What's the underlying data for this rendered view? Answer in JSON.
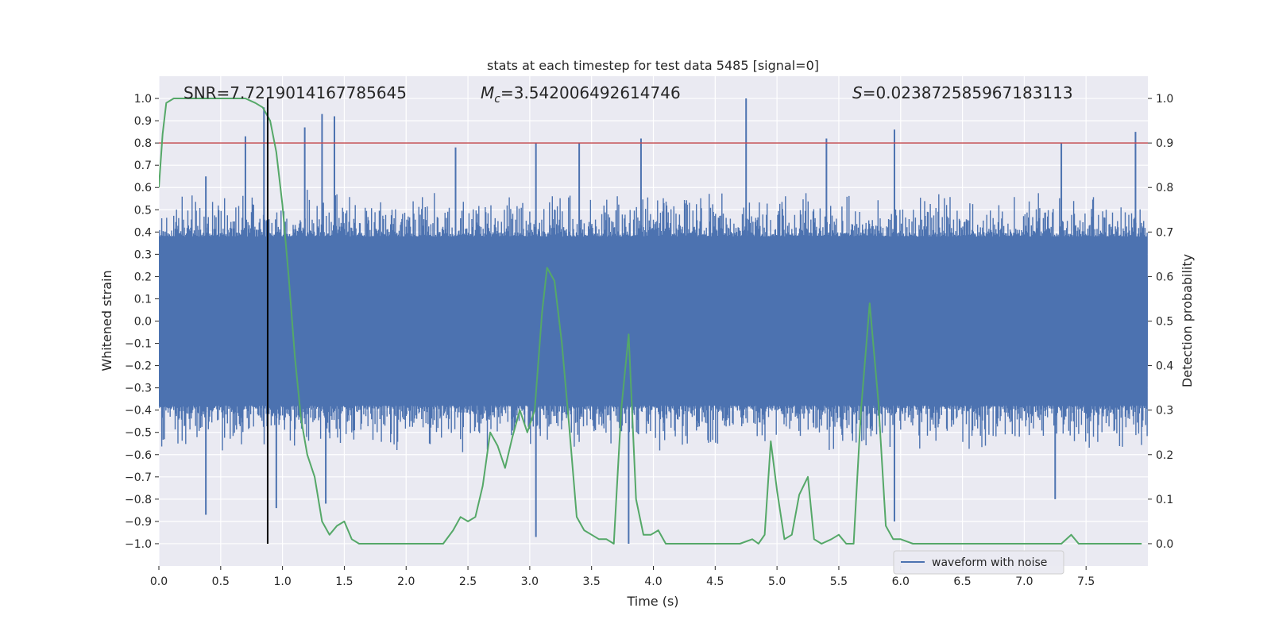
{
  "chart_data": {
    "type": "line",
    "title": "stats at each timestep for test data 5485 [signal=0]",
    "xlabel": "Time (s)",
    "ylabel_left": "Whitened strain",
    "ylabel_right": "Detection probability",
    "xlim": [
      0.0,
      8.0
    ],
    "ylim_left": [
      -1.1,
      1.1
    ],
    "ylim_right": [
      -0.05,
      1.05
    ],
    "grid": true,
    "legend_position": "lower-right",
    "stats": {
      "snr": {
        "label": "SNR=7.7219014167785645"
      },
      "mc": {
        "symbol": "M",
        "subscript": "c",
        "value": "=3.542006492614746"
      },
      "s": {
        "symbol": "S",
        "value": "=0.023872585967183113"
      }
    },
    "x_ticks": [
      "0.0",
      "0.5",
      "1.0",
      "1.5",
      "2.0",
      "2.5",
      "3.0",
      "3.5",
      "4.0",
      "4.5",
      "5.0",
      "5.5",
      "6.0",
      "6.5",
      "7.0",
      "7.5"
    ],
    "y_ticks_left": [
      "1.0",
      "0.9",
      "0.8",
      "0.7",
      "0.6",
      "0.5",
      "0.4",
      "0.3",
      "0.2",
      "0.1",
      "0.0",
      "−0.1",
      "−0.2",
      "−0.3",
      "−0.4",
      "−0.5",
      "−0.6",
      "−0.7",
      "−0.8",
      "−0.9",
      "−1.0"
    ],
    "y_ticks_right": [
      "1.0",
      "0.9",
      "0.8",
      "0.7",
      "0.6",
      "0.5",
      "0.4",
      "0.3",
      "0.2",
      "0.1",
      "0.0"
    ],
    "threshold": 0.9,
    "marker_time": 0.88,
    "series": [
      {
        "name": "waveform with noise",
        "color": "#4c72b0",
        "axis": "left",
        "typical_amplitude": 0.4,
        "spikes_positive": [
          {
            "x": 0.38,
            "y": 0.65
          },
          {
            "x": 0.7,
            "y": 0.83
          },
          {
            "x": 0.85,
            "y": 0.96
          },
          {
            "x": 1.18,
            "y": 0.87
          },
          {
            "x": 1.32,
            "y": 0.93
          },
          {
            "x": 1.42,
            "y": 0.92
          },
          {
            "x": 2.4,
            "y": 0.78
          },
          {
            "x": 3.05,
            "y": 0.8
          },
          {
            "x": 3.4,
            "y": 0.8
          },
          {
            "x": 3.9,
            "y": 0.82
          },
          {
            "x": 4.75,
            "y": 1.0
          },
          {
            "x": 5.4,
            "y": 0.82
          },
          {
            "x": 5.95,
            "y": 0.86
          },
          {
            "x": 7.3,
            "y": 0.8
          },
          {
            "x": 7.9,
            "y": 0.85
          }
        ],
        "spikes_negative": [
          {
            "x": 0.38,
            "y": -0.87
          },
          {
            "x": 0.95,
            "y": -0.84
          },
          {
            "x": 1.35,
            "y": -0.82
          },
          {
            "x": 3.05,
            "y": -0.97
          },
          {
            "x": 3.8,
            "y": -1.0
          },
          {
            "x": 5.95,
            "y": -0.9
          },
          {
            "x": 7.25,
            "y": -0.8
          }
        ]
      },
      {
        "name": "detection probability",
        "color": "#55a868",
        "axis": "right",
        "x": [
          0.0,
          0.03,
          0.06,
          0.12,
          0.2,
          0.3,
          0.4,
          0.5,
          0.6,
          0.7,
          0.78,
          0.84,
          0.9,
          0.95,
          1.0,
          1.05,
          1.1,
          1.15,
          1.2,
          1.26,
          1.32,
          1.38,
          1.44,
          1.5,
          1.56,
          1.62,
          1.68,
          1.75,
          1.85,
          2.0,
          2.1,
          2.2,
          2.3,
          2.38,
          2.44,
          2.5,
          2.56,
          2.62,
          2.68,
          2.74,
          2.8,
          2.86,
          2.92,
          2.98,
          3.04,
          3.1,
          3.14,
          3.2,
          3.26,
          3.32,
          3.38,
          3.44,
          3.5,
          3.56,
          3.62,
          3.68,
          3.74,
          3.8,
          3.86,
          3.92,
          3.98,
          4.04,
          4.1,
          4.2,
          4.3,
          4.4,
          4.5,
          4.6,
          4.7,
          4.8,
          4.85,
          4.9,
          4.95,
          5.0,
          5.06,
          5.12,
          5.18,
          5.25,
          5.3,
          5.36,
          5.44,
          5.5,
          5.56,
          5.62,
          5.68,
          5.75,
          5.82,
          5.88,
          5.94,
          6.0,
          6.1,
          6.2,
          6.3,
          6.4,
          6.5,
          6.6,
          6.8,
          7.0,
          7.2,
          7.3,
          7.38,
          7.44,
          7.5,
          7.6,
          7.7,
          7.8,
          7.9,
          7.95
        ],
        "y": [
          0.8,
          0.92,
          0.99,
          1.0,
          1.0,
          1.0,
          1.0,
          1.0,
          1.0,
          1.0,
          0.99,
          0.98,
          0.95,
          0.88,
          0.76,
          0.6,
          0.42,
          0.28,
          0.2,
          0.15,
          0.05,
          0.02,
          0.04,
          0.05,
          0.01,
          0.0,
          0.0,
          0.0,
          0.0,
          0.0,
          0.0,
          0.0,
          0.0,
          0.03,
          0.06,
          0.05,
          0.06,
          0.13,
          0.25,
          0.22,
          0.17,
          0.24,
          0.3,
          0.25,
          0.3,
          0.52,
          0.62,
          0.59,
          0.45,
          0.26,
          0.06,
          0.03,
          0.02,
          0.01,
          0.01,
          0.0,
          0.3,
          0.47,
          0.1,
          0.02,
          0.02,
          0.03,
          0.0,
          0.0,
          0.0,
          0.0,
          0.0,
          0.0,
          0.0,
          0.01,
          0.0,
          0.02,
          0.23,
          0.12,
          0.01,
          0.02,
          0.11,
          0.15,
          0.01,
          0.0,
          0.01,
          0.02,
          0.0,
          0.0,
          0.3,
          0.54,
          0.32,
          0.04,
          0.01,
          0.01,
          0.0,
          0.0,
          0.0,
          0.0,
          0.0,
          0.0,
          0.0,
          0.0,
          0.0,
          0.0,
          0.02,
          0.0,
          0.0,
          0.0,
          0.0,
          0.0,
          0.0,
          0.0
        ]
      }
    ],
    "threshold_color": "#c44e52",
    "marker_color": "#000000",
    "plot_background": "#eaeaf2",
    "grid_color": "#ffffff"
  }
}
